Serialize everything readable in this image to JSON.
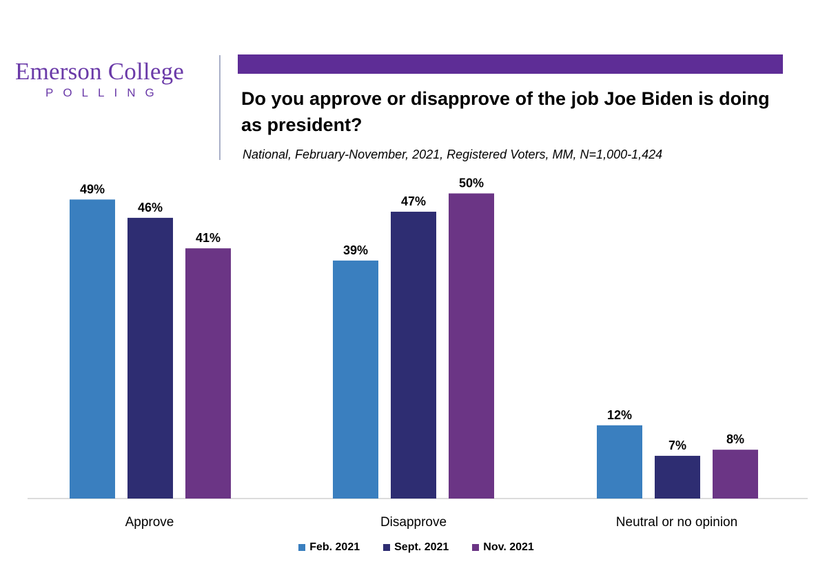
{
  "logo": {
    "main": "Emerson College",
    "sub": "POLLING"
  },
  "colors": {
    "brand_purple": "#5e2d96",
    "series": [
      "#3a7fbf",
      "#2e2d72",
      "#6b3585"
    ]
  },
  "chart_data": {
    "type": "bar",
    "title": "Do you approve or disapprove of the job Joe Biden is doing as president?",
    "subtitle": "National, February-November, 2021, Registered Voters, MM, N=1,000-1,424",
    "categories": [
      "Approve",
      "Disapprove",
      "Neutral or no opinion"
    ],
    "series": [
      {
        "name": "Feb. 2021",
        "values": [
          49,
          39,
          12
        ],
        "color": "#3a7fbf"
      },
      {
        "name": "Sept. 2021",
        "values": [
          46,
          47,
          7
        ],
        "color": "#2e2d72"
      },
      {
        "name": "Nov. 2021",
        "values": [
          41,
          50,
          8
        ],
        "color": "#6b3585"
      }
    ],
    "value_suffix": "%",
    "ylim": [
      0,
      50
    ],
    "grid": false,
    "legend": "bottom-center"
  }
}
